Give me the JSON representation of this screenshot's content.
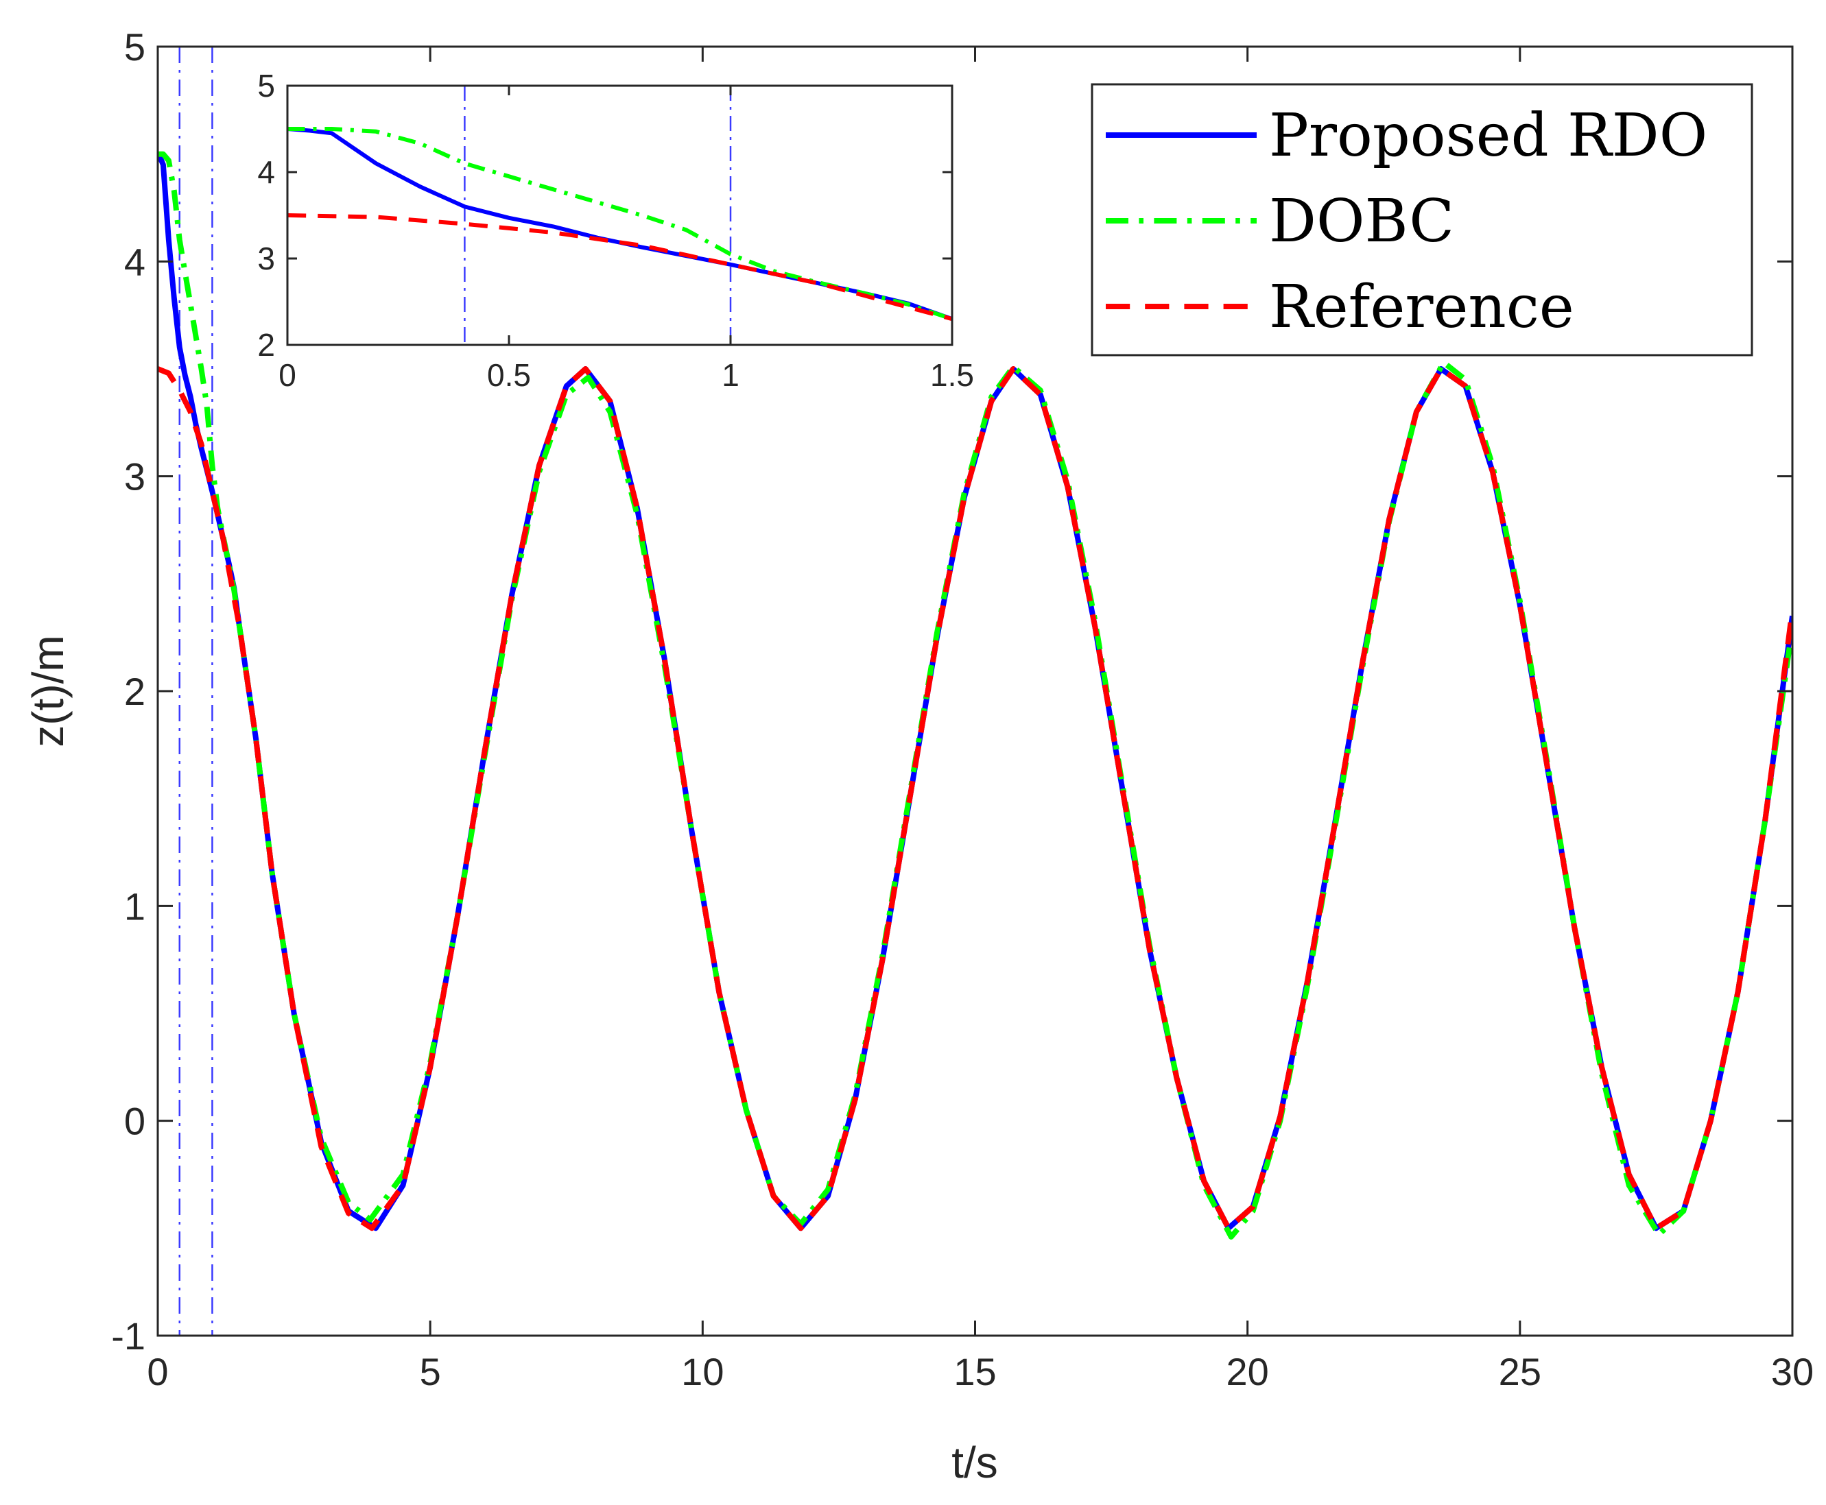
{
  "chart_data": {
    "type": "line",
    "title": "",
    "xlabel": "t/s",
    "ylabel": "z(t)/m",
    "xlim": [
      0,
      30
    ],
    "ylim": [
      -1,
      5
    ],
    "xticks": [
      "0",
      "5",
      "10",
      "15",
      "20",
      "25",
      "30"
    ],
    "yticks": [
      "-1",
      "0",
      "1",
      "2",
      "3",
      "4",
      "5"
    ],
    "grid": false,
    "legend_position": "top-right",
    "vertical_markers": [
      0.4,
      1.0
    ],
    "series": [
      {
        "name": "Proposed RDO",
        "color": "#0000ff",
        "style": "solid",
        "points": [
          [
            0,
            4.5
          ],
          [
            0.05,
            4.48
          ],
          [
            0.1,
            4.45
          ],
          [
            0.2,
            4.1
          ],
          [
            0.3,
            3.83
          ],
          [
            0.4,
            3.6
          ],
          [
            0.5,
            3.47
          ],
          [
            0.6,
            3.37
          ],
          [
            0.7,
            3.24
          ],
          [
            0.8,
            3.13
          ],
          [
            0.9,
            3.03
          ],
          [
            1.0,
            2.93
          ],
          [
            1.1,
            2.82
          ],
          [
            1.2,
            2.71
          ],
          [
            1.3,
            2.6
          ],
          [
            1.4,
            2.48
          ],
          [
            1.5,
            2.3
          ],
          [
            1.8,
            1.78
          ],
          [
            2.1,
            1.15
          ],
          [
            2.5,
            0.5
          ],
          [
            3.0,
            -0.1
          ],
          [
            3.5,
            -0.42
          ],
          [
            4.0,
            -0.5
          ],
          [
            4.5,
            -0.3
          ],
          [
            5.0,
            0.25
          ],
          [
            5.5,
            0.95
          ],
          [
            6.0,
            1.72
          ],
          [
            6.5,
            2.45
          ],
          [
            7.0,
            3.05
          ],
          [
            7.5,
            3.42
          ],
          [
            7.85,
            3.5
          ],
          [
            8.3,
            3.35
          ],
          [
            8.8,
            2.85
          ],
          [
            9.3,
            2.15
          ],
          [
            9.8,
            1.35
          ],
          [
            10.3,
            0.6
          ],
          [
            10.8,
            0.05
          ],
          [
            11.3,
            -0.35
          ],
          [
            11.8,
            -0.5
          ],
          [
            12.3,
            -0.35
          ],
          [
            12.8,
            0.1
          ],
          [
            13.3,
            0.75
          ],
          [
            13.8,
            1.5
          ],
          [
            14.3,
            2.25
          ],
          [
            14.8,
            2.9
          ],
          [
            15.3,
            3.35
          ],
          [
            15.7,
            3.5
          ],
          [
            16.2,
            3.38
          ],
          [
            16.7,
            2.95
          ],
          [
            17.2,
            2.3
          ],
          [
            17.7,
            1.55
          ],
          [
            18.2,
            0.8
          ],
          [
            18.7,
            0.2
          ],
          [
            19.2,
            -0.28
          ],
          [
            19.65,
            -0.5
          ],
          [
            20.1,
            -0.4
          ],
          [
            20.6,
            0.02
          ],
          [
            21.1,
            0.65
          ],
          [
            21.6,
            1.38
          ],
          [
            22.1,
            2.12
          ],
          [
            22.6,
            2.8
          ],
          [
            23.1,
            3.3
          ],
          [
            23.55,
            3.5
          ],
          [
            24.0,
            3.42
          ],
          [
            24.5,
            3.02
          ],
          [
            25.0,
            2.4
          ],
          [
            25.5,
            1.65
          ],
          [
            26.0,
            0.9
          ],
          [
            26.5,
            0.25
          ],
          [
            27.0,
            -0.25
          ],
          [
            27.5,
            -0.5
          ],
          [
            28.0,
            -0.42
          ],
          [
            28.5,
            0.0
          ],
          [
            29.0,
            0.6
          ],
          [
            29.5,
            1.4
          ],
          [
            30.0,
            2.35
          ]
        ]
      },
      {
        "name": "DOBC",
        "color": "#00ff00",
        "style": "dash-dot",
        "points": [
          [
            0,
            4.5
          ],
          [
            0.1,
            4.5
          ],
          [
            0.2,
            4.47
          ],
          [
            0.3,
            4.33
          ],
          [
            0.4,
            4.1
          ],
          [
            0.5,
            3.95
          ],
          [
            0.6,
            3.8
          ],
          [
            0.7,
            3.65
          ],
          [
            0.8,
            3.5
          ],
          [
            0.9,
            3.33
          ],
          [
            1.0,
            3.05
          ],
          [
            1.1,
            2.85
          ],
          [
            1.2,
            2.72
          ],
          [
            1.3,
            2.6
          ],
          [
            1.4,
            2.47
          ],
          [
            1.5,
            2.3
          ],
          [
            1.8,
            1.78
          ],
          [
            2.1,
            1.15
          ],
          [
            2.5,
            0.5
          ],
          [
            3.0,
            -0.08
          ],
          [
            3.5,
            -0.38
          ],
          [
            3.9,
            -0.46
          ],
          [
            4.5,
            -0.25
          ],
          [
            5.0,
            0.27
          ],
          [
            5.5,
            0.95
          ],
          [
            6.0,
            1.7
          ],
          [
            6.5,
            2.43
          ],
          [
            7.0,
            3.02
          ],
          [
            7.5,
            3.38
          ],
          [
            7.9,
            3.46
          ],
          [
            8.3,
            3.3
          ],
          [
            8.8,
            2.82
          ],
          [
            9.3,
            2.12
          ],
          [
            9.8,
            1.35
          ],
          [
            10.3,
            0.6
          ],
          [
            10.8,
            0.05
          ],
          [
            11.3,
            -0.35
          ],
          [
            11.8,
            -0.48
          ],
          [
            12.3,
            -0.32
          ],
          [
            12.8,
            0.12
          ],
          [
            13.3,
            0.77
          ],
          [
            13.8,
            1.52
          ],
          [
            14.3,
            2.27
          ],
          [
            14.8,
            2.92
          ],
          [
            15.3,
            3.37
          ],
          [
            15.7,
            3.51
          ],
          [
            16.2,
            3.4
          ],
          [
            16.7,
            2.98
          ],
          [
            17.2,
            2.33
          ],
          [
            17.7,
            1.57
          ],
          [
            18.2,
            0.82
          ],
          [
            18.7,
            0.2
          ],
          [
            19.2,
            -0.3
          ],
          [
            19.7,
            -0.54
          ],
          [
            20.1,
            -0.42
          ],
          [
            20.6,
            0.0
          ],
          [
            21.1,
            0.63
          ],
          [
            21.6,
            1.36
          ],
          [
            22.1,
            2.1
          ],
          [
            22.6,
            2.79
          ],
          [
            23.1,
            3.3
          ],
          [
            23.6,
            3.53
          ],
          [
            24.0,
            3.45
          ],
          [
            24.5,
            3.05
          ],
          [
            25.0,
            2.42
          ],
          [
            25.5,
            1.67
          ],
          [
            26.0,
            0.9
          ],
          [
            26.5,
            0.22
          ],
          [
            27.0,
            -0.3
          ],
          [
            27.55,
            -0.53
          ],
          [
            28.0,
            -0.42
          ],
          [
            28.5,
            0.0
          ],
          [
            29.0,
            0.6
          ],
          [
            29.5,
            1.4
          ],
          [
            30.0,
            2.3
          ]
        ]
      },
      {
        "name": "Reference",
        "color": "#ff0000",
        "style": "dashed",
        "points": [
          [
            0,
            3.5
          ],
          [
            0.2,
            3.48
          ],
          [
            0.4,
            3.4
          ],
          [
            0.6,
            3.3
          ],
          [
            0.8,
            3.15
          ],
          [
            1.0,
            2.93
          ],
          [
            1.2,
            2.71
          ],
          [
            1.5,
            2.3
          ],
          [
            1.8,
            1.78
          ],
          [
            2.1,
            1.15
          ],
          [
            2.5,
            0.5
          ],
          [
            3.0,
            -0.12
          ],
          [
            3.5,
            -0.43
          ],
          [
            3.93,
            -0.5
          ],
          [
            4.5,
            -0.3
          ],
          [
            5.0,
            0.25
          ],
          [
            5.5,
            0.95
          ],
          [
            6.0,
            1.72
          ],
          [
            6.5,
            2.45
          ],
          [
            7.0,
            3.05
          ],
          [
            7.5,
            3.42
          ],
          [
            7.85,
            3.5
          ],
          [
            8.3,
            3.35
          ],
          [
            8.8,
            2.85
          ],
          [
            9.3,
            2.15
          ],
          [
            9.8,
            1.35
          ],
          [
            10.3,
            0.6
          ],
          [
            10.8,
            0.05
          ],
          [
            11.3,
            -0.35
          ],
          [
            11.8,
            -0.5
          ],
          [
            12.3,
            -0.35
          ],
          [
            12.8,
            0.1
          ],
          [
            13.3,
            0.75
          ],
          [
            13.8,
            1.5
          ],
          [
            14.3,
            2.25
          ],
          [
            14.8,
            2.9
          ],
          [
            15.3,
            3.35
          ],
          [
            15.7,
            3.5
          ],
          [
            16.2,
            3.38
          ],
          [
            16.7,
            2.95
          ],
          [
            17.2,
            2.3
          ],
          [
            17.7,
            1.55
          ],
          [
            18.2,
            0.8
          ],
          [
            18.7,
            0.2
          ],
          [
            19.2,
            -0.28
          ],
          [
            19.65,
            -0.5
          ],
          [
            20.1,
            -0.4
          ],
          [
            20.6,
            0.02
          ],
          [
            21.1,
            0.65
          ],
          [
            21.6,
            1.38
          ],
          [
            22.1,
            2.12
          ],
          [
            22.6,
            2.8
          ],
          [
            23.1,
            3.3
          ],
          [
            23.55,
            3.5
          ],
          [
            24.0,
            3.42
          ],
          [
            24.5,
            3.02
          ],
          [
            25.0,
            2.4
          ],
          [
            25.5,
            1.65
          ],
          [
            26.0,
            0.9
          ],
          [
            26.5,
            0.25
          ],
          [
            27.0,
            -0.25
          ],
          [
            27.5,
            -0.5
          ],
          [
            28.0,
            -0.42
          ],
          [
            28.5,
            0.0
          ],
          [
            29.0,
            0.6
          ],
          [
            29.5,
            1.4
          ],
          [
            30.0,
            2.38
          ]
        ]
      }
    ],
    "inset": {
      "xlim": [
        0,
        1.5
      ],
      "ylim": [
        2,
        5
      ],
      "xticks": [
        "0",
        "0.5",
        "1",
        "1.5"
      ],
      "yticks": [
        "2",
        "3",
        "4",
        "5"
      ],
      "vertical_markers": [
        0.4,
        1.0
      ]
    }
  }
}
